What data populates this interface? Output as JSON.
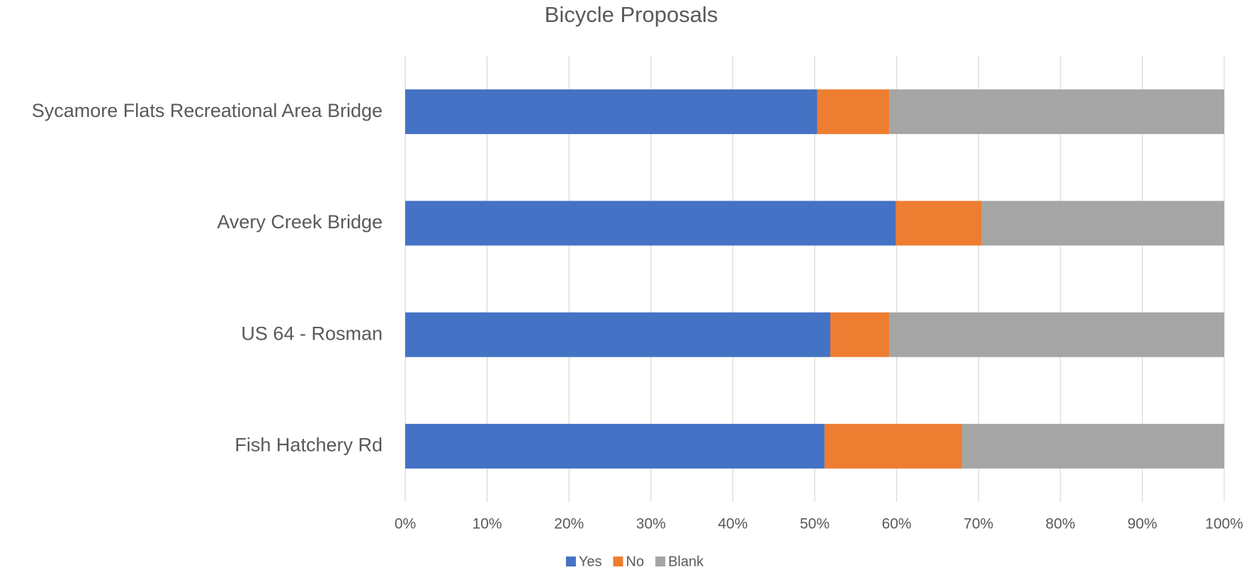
{
  "chart_data": {
    "type": "stacked_barh",
    "title": "Bicycle Proposals",
    "categories": [
      "Sycamore Flats Recreational Area Bridge",
      "Avery Creek Bridge",
      "US 64 - Rosman",
      "Fish Hatchery Rd"
    ],
    "series": [
      {
        "name": "Yes",
        "color": "#4472c4",
        "values": [
          50.3,
          59.9,
          51.9,
          51.2
        ]
      },
      {
        "name": "No",
        "color": "#ed7d31",
        "values": [
          8.8,
          10.5,
          7.2,
          16.8
        ]
      },
      {
        "name": "Blank",
        "color": "#a5a5a5",
        "values": [
          40.9,
          29.6,
          40.9,
          32.0
        ]
      }
    ],
    "xlim": [
      0,
      100
    ],
    "xticks": [
      {
        "value": 0,
        "label": "0%"
      },
      {
        "value": 10,
        "label": "10%"
      },
      {
        "value": 20,
        "label": "20%"
      },
      {
        "value": 30,
        "label": "30%"
      },
      {
        "value": 40,
        "label": "40%"
      },
      {
        "value": 50,
        "label": "50%"
      },
      {
        "value": 60,
        "label": "60%"
      },
      {
        "value": 70,
        "label": "70%"
      },
      {
        "value": 80,
        "label": "80%"
      },
      {
        "value": 90,
        "label": "90%"
      },
      {
        "value": 100,
        "label": "100%"
      }
    ],
    "grid": true,
    "legend": "bottom"
  }
}
